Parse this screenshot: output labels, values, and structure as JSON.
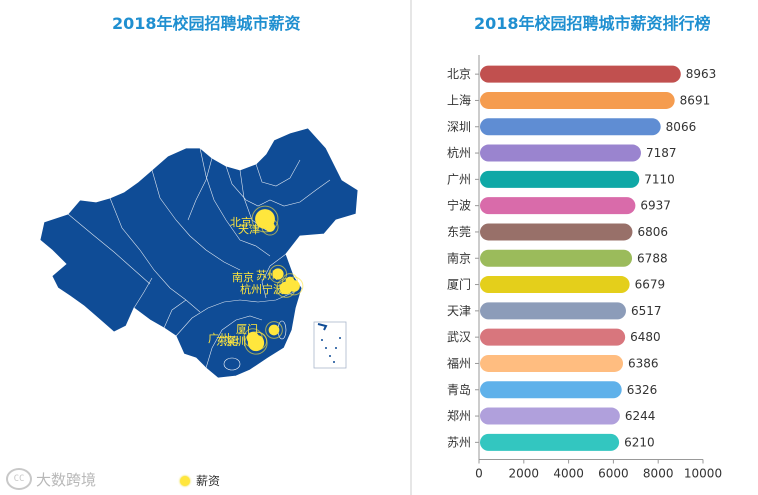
{
  "left_panel": {
    "title": "2018年校园招聘城市薪资",
    "legend_label": "薪资",
    "city_labels": [
      "北京",
      "天津",
      "南京",
      "苏州",
      "杭州",
      "宁波",
      "厦门",
      "广州",
      "东莞",
      "深圳"
    ],
    "colors": {
      "map": "#0f4c96",
      "map_border": "#ffffff",
      "point": "#ffe63d"
    }
  },
  "right_panel": {
    "title": "2018年校园招聘城市薪资排行榜"
  },
  "watermark": {
    "text": "大数跨境",
    "logo": "CC"
  },
  "chart_data": {
    "type": "bar",
    "orientation": "horizontal",
    "categories": [
      "北京",
      "上海",
      "深圳",
      "杭州",
      "广州",
      "宁波",
      "东莞",
      "南京",
      "厦门",
      "天津",
      "武汉",
      "福州",
      "青岛",
      "郑州",
      "苏州"
    ],
    "values": [
      8963,
      8691,
      8066,
      7187,
      7110,
      6937,
      6806,
      6788,
      6679,
      6517,
      6480,
      6386,
      6326,
      6244,
      6210
    ],
    "colors": [
      "#c1504f",
      "#f59c4f",
      "#5f8dd3",
      "#9a84cf",
      "#0fa8a6",
      "#d96baa",
      "#987069",
      "#9bbb5b",
      "#e4cf1b",
      "#8c9cb9",
      "#d8767d",
      "#ffbd80",
      "#5fb1ea",
      "#b0a0dc",
      "#33c6c0"
    ],
    "xlim": [
      0,
      10000
    ],
    "xticks": [
      0,
      2000,
      4000,
      6000,
      8000,
      10000
    ],
    "grid": false
  }
}
